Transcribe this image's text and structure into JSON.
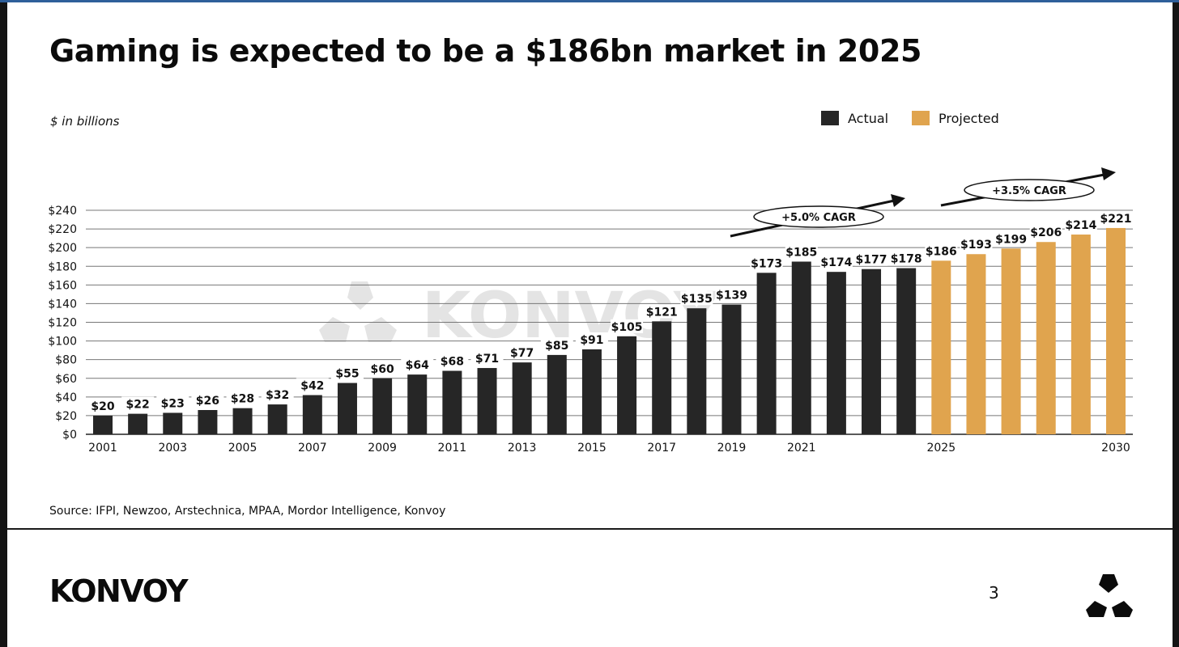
{
  "slide": {
    "title": "Gaming is expected to be a $186bn market in 2025",
    "unit_note": "$ in billions",
    "source": "Source: IFPI, Newzoo, Arstechnica, MPAA, Mordor Intelligence, Konvoy",
    "logo_text": "KONVOY",
    "watermark_text": "KONVOY",
    "page_number": "3"
  },
  "colors": {
    "actual": "#262626",
    "projected": "#e0a44e",
    "text": "#111111",
    "grid": "#777777",
    "watermark": "#e4e4e4"
  },
  "chart_data": {
    "type": "bar",
    "title": "Gaming is expected to be a $186bn market in 2025",
    "xlabel": "",
    "ylabel": "$ in billions",
    "ylim": [
      0,
      240
    ],
    "ytick_step": 20,
    "grid": true,
    "legend_position": "top-right",
    "years": [
      2001,
      2002,
      2003,
      2004,
      2005,
      2006,
      2007,
      2008,
      2009,
      2010,
      2011,
      2012,
      2013,
      2014,
      2015,
      2016,
      2017,
      2018,
      2019,
      2020,
      2021,
      2022,
      2023,
      2024,
      2025,
      2026,
      2027,
      2028,
      2029,
      2030
    ],
    "xtick_labels": [
      "2001",
      "2003",
      "2005",
      "2007",
      "2009",
      "2011",
      "2013",
      "2015",
      "2017",
      "2019",
      "2021",
      "2025",
      "2030"
    ],
    "series": [
      {
        "name": "Actual",
        "years": [
          2001,
          2002,
          2003,
          2004,
          2005,
          2006,
          2007,
          2008,
          2009,
          2010,
          2011,
          2012,
          2013,
          2014,
          2015,
          2016,
          2017,
          2018,
          2019,
          2020,
          2021,
          2022,
          2023,
          2024
        ],
        "values": [
          20,
          22,
          23,
          26,
          28,
          32,
          42,
          55,
          60,
          64,
          68,
          71,
          77,
          85,
          91,
          105,
          121,
          135,
          139,
          173,
          185,
          174,
          177,
          178
        ]
      },
      {
        "name": "Projected",
        "years": [
          2025,
          2026,
          2027,
          2028,
          2029,
          2030
        ],
        "values": [
          186,
          193,
          199,
          206,
          214,
          221
        ]
      }
    ],
    "annotations": [
      {
        "text": "+5.0% CAGR",
        "period": "actual"
      },
      {
        "text": "+3.5% CAGR",
        "period": "projected"
      }
    ]
  }
}
